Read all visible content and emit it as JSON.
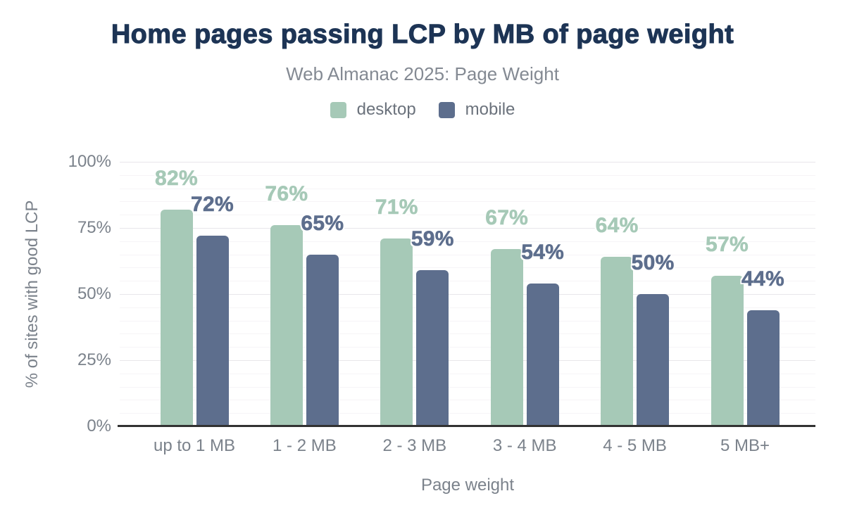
{
  "chart_data": {
    "type": "bar",
    "title": "Home pages passing LCP by MB of page weight",
    "subtitle": "Web Almanac 2025: Page Weight",
    "categories": [
      "up to 1 MB",
      "1 - 2 MB",
      "2 - 3 MB",
      "3 - 4 MB",
      "4 - 5 MB",
      "5 MB+"
    ],
    "series": [
      {
        "name": "desktop",
        "color": "#a6c9b7",
        "values": [
          82,
          76,
          71,
          67,
          64,
          57
        ]
      },
      {
        "name": "mobile",
        "color": "#5d6e8d",
        "values": [
          72,
          65,
          59,
          54,
          50,
          44
        ]
      }
    ],
    "value_suffix": "%",
    "xlabel": "Page weight",
    "ylabel": "% of sites with good LCP",
    "ylim": [
      0,
      100
    ],
    "yticks": [
      0,
      25,
      50,
      75,
      100
    ],
    "ytick_labels": [
      "0%",
      "25%",
      "50%",
      "75%",
      "100%"
    ],
    "grid": {
      "minor_step": 5,
      "major_step": 25,
      "minor_on": true,
      "major_on": true
    },
    "legend_position": "top",
    "colors": {
      "title": "#1d3455",
      "subtitle_text": "#848a93",
      "legend_text": "#6b727c",
      "axis_text": "#7b828b",
      "axis_line": "#323232",
      "grid_major": "#e8e6ea",
      "grid_minor": "#f6f4f7"
    }
  }
}
